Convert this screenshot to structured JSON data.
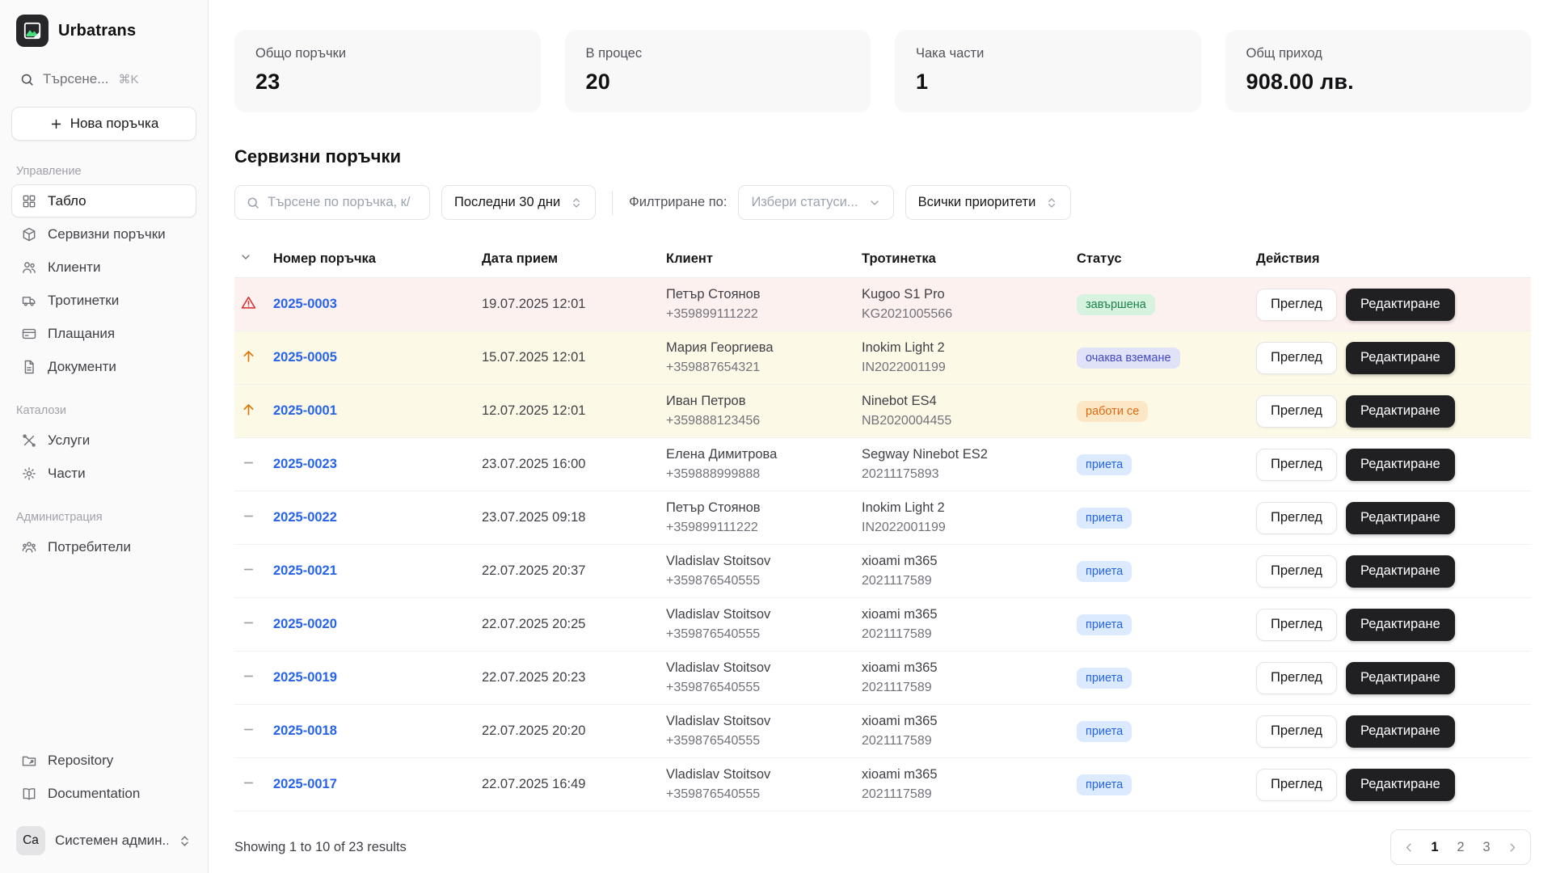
{
  "sidebar": {
    "logo": {
      "title": "Urbatrans"
    },
    "search": {
      "label": "Търсене...",
      "shortcut": "⌘K"
    },
    "new_order_button": "Нова поръчка",
    "sections": [
      {
        "label": "Управление",
        "items": [
          {
            "label": "Табло",
            "icon": "grid-icon",
            "active": true
          },
          {
            "label": "Сервизни поръчки",
            "icon": "package-icon",
            "active": false
          },
          {
            "label": "Клиенти",
            "icon": "users-icon",
            "active": false
          },
          {
            "label": "Тротинетки",
            "icon": "truck-icon",
            "active": false
          },
          {
            "label": "Плащания",
            "icon": "payment-icon",
            "active": false
          },
          {
            "label": "Документи",
            "icon": "document-icon",
            "active": false
          }
        ]
      },
      {
        "label": "Каталози",
        "items": [
          {
            "label": "Услуги",
            "icon": "tools-icon",
            "active": false
          },
          {
            "label": "Части",
            "icon": "gear-icon",
            "active": false
          }
        ]
      },
      {
        "label": "Администрация",
        "items": [
          {
            "label": "Потребители",
            "icon": "user-group-icon",
            "active": false
          }
        ]
      }
    ],
    "footer_items": [
      {
        "label": "Repository",
        "icon": "repository-icon"
      },
      {
        "label": "Documentation",
        "icon": "book-icon"
      }
    ],
    "user": {
      "initials": "Ca",
      "name": "Системен админ..."
    }
  },
  "stats_cards": [
    {
      "label": "Общо поръчки",
      "value": "23"
    },
    {
      "label": "В процес",
      "value": "20"
    },
    {
      "label": "Чака части",
      "value": "1"
    },
    {
      "label": "Общ приход",
      "value": "908.00 лв."
    }
  ],
  "orders": {
    "title": "Сервизни поръчки",
    "filters": {
      "search_placeholder": "Търсене по поръчка, к/",
      "period": "Последни 30 дни",
      "filter_label": "Филтриране по:",
      "status_placeholder": "Избери статуси...",
      "priority": "Всички приоритети"
    },
    "table": {
      "columns": [
        "Номер поръчка",
        "Дата прием",
        "Клиент",
        "Тротинетка",
        "Статус",
        "Действия"
      ],
      "actions": {
        "view": "Преглед",
        "edit": "Редактиране"
      },
      "rows": [
        {
          "priority": "alert",
          "row_bg": "red",
          "number": "2025-0003",
          "date": "19.07.2025 12:01",
          "client": "Петър Стоянов",
          "phone": "+359899111222",
          "scooter": "Kugoo S1 Pro",
          "serial": "KG2021005566",
          "status": "завършена",
          "status_type": "green"
        },
        {
          "priority": "high",
          "row_bg": "yellow",
          "number": "2025-0005",
          "date": "15.07.2025 12:01",
          "client": "Мария Георгиева",
          "phone": "+359887654321",
          "scooter": "Inokim Light 2",
          "serial": "IN2022001199",
          "status": "очаква вземане",
          "status_type": "indigo"
        },
        {
          "priority": "high",
          "row_bg": "yellow",
          "number": "2025-0001",
          "date": "12.07.2025 12:01",
          "client": "Иван Петров",
          "phone": "+359888123456",
          "scooter": "Ninebot ES4",
          "serial": "NB2020004455",
          "status": "работи се",
          "status_type": "orange"
        },
        {
          "priority": "normal",
          "row_bg": "white",
          "number": "2025-0023",
          "date": "23.07.2025 16:00",
          "client": "Елена Димитрова",
          "phone": "+359888999888",
          "scooter": "Segway Ninebot ES2",
          "serial": "20211175893",
          "status": "приета",
          "status_type": "blue"
        },
        {
          "priority": "normal",
          "row_bg": "white",
          "number": "2025-0022",
          "date": "23.07.2025 09:18",
          "client": "Петър Стоянов",
          "phone": "+359899111222",
          "scooter": "Inokim Light 2",
          "serial": "IN2022001199",
          "status": "приета",
          "status_type": "blue"
        },
        {
          "priority": "normal",
          "row_bg": "white",
          "number": "2025-0021",
          "date": "22.07.2025 20:37",
          "client": "Vladislav Stoitsov",
          "phone": "+359876540555",
          "scooter": "xioami m365",
          "serial": "2021117589",
          "status": "приета",
          "status_type": "blue"
        },
        {
          "priority": "normal",
          "row_bg": "white",
          "number": "2025-0020",
          "date": "22.07.2025 20:25",
          "client": "Vladislav Stoitsov",
          "phone": "+359876540555",
          "scooter": "xioami m365",
          "serial": "2021117589",
          "status": "приета",
          "status_type": "blue"
        },
        {
          "priority": "normal",
          "row_bg": "white",
          "number": "2025-0019",
          "date": "22.07.2025 20:23",
          "client": "Vladislav Stoitsov",
          "phone": "+359876540555",
          "scooter": "xioami m365",
          "serial": "2021117589",
          "status": "приета",
          "status_type": "blue"
        },
        {
          "priority": "normal",
          "row_bg": "white",
          "number": "2025-0018",
          "date": "22.07.2025 20:20",
          "client": "Vladislav Stoitsov",
          "phone": "+359876540555",
          "scooter": "xioami m365",
          "serial": "2021117589",
          "status": "приета",
          "status_type": "blue"
        },
        {
          "priority": "normal",
          "row_bg": "white",
          "number": "2025-0017",
          "date": "22.07.2025 16:49",
          "client": "Vladislav Stoitsov",
          "phone": "+359876540555",
          "scooter": "xioami m365",
          "serial": "2021117589",
          "status": "приета",
          "status_type": "blue"
        }
      ]
    },
    "pagination": {
      "summary": "Showing 1 to 10 of 23 results",
      "pages": [
        "1",
        "2",
        "3"
      ],
      "active_page": "1"
    }
  },
  "colors": {
    "accent_link": "#2563eb",
    "badge_green_bg": "#d8f2e0",
    "badge_green_text": "#198348",
    "badge_indigo_bg": "#e0e3f8",
    "badge_indigo_text": "#4247c9",
    "badge_orange_bg": "#fbe7c6",
    "badge_orange_text": "#e2680f",
    "badge_blue_bg": "#dbeafe",
    "badge_blue_text": "#2563eb",
    "row_alert_bg": "#fdf1f0",
    "row_priority_bg": "#fdf9e7",
    "edit_button_bg": "#202023",
    "logo_bg": "#27272a",
    "logo_accent": "#4ade80"
  }
}
